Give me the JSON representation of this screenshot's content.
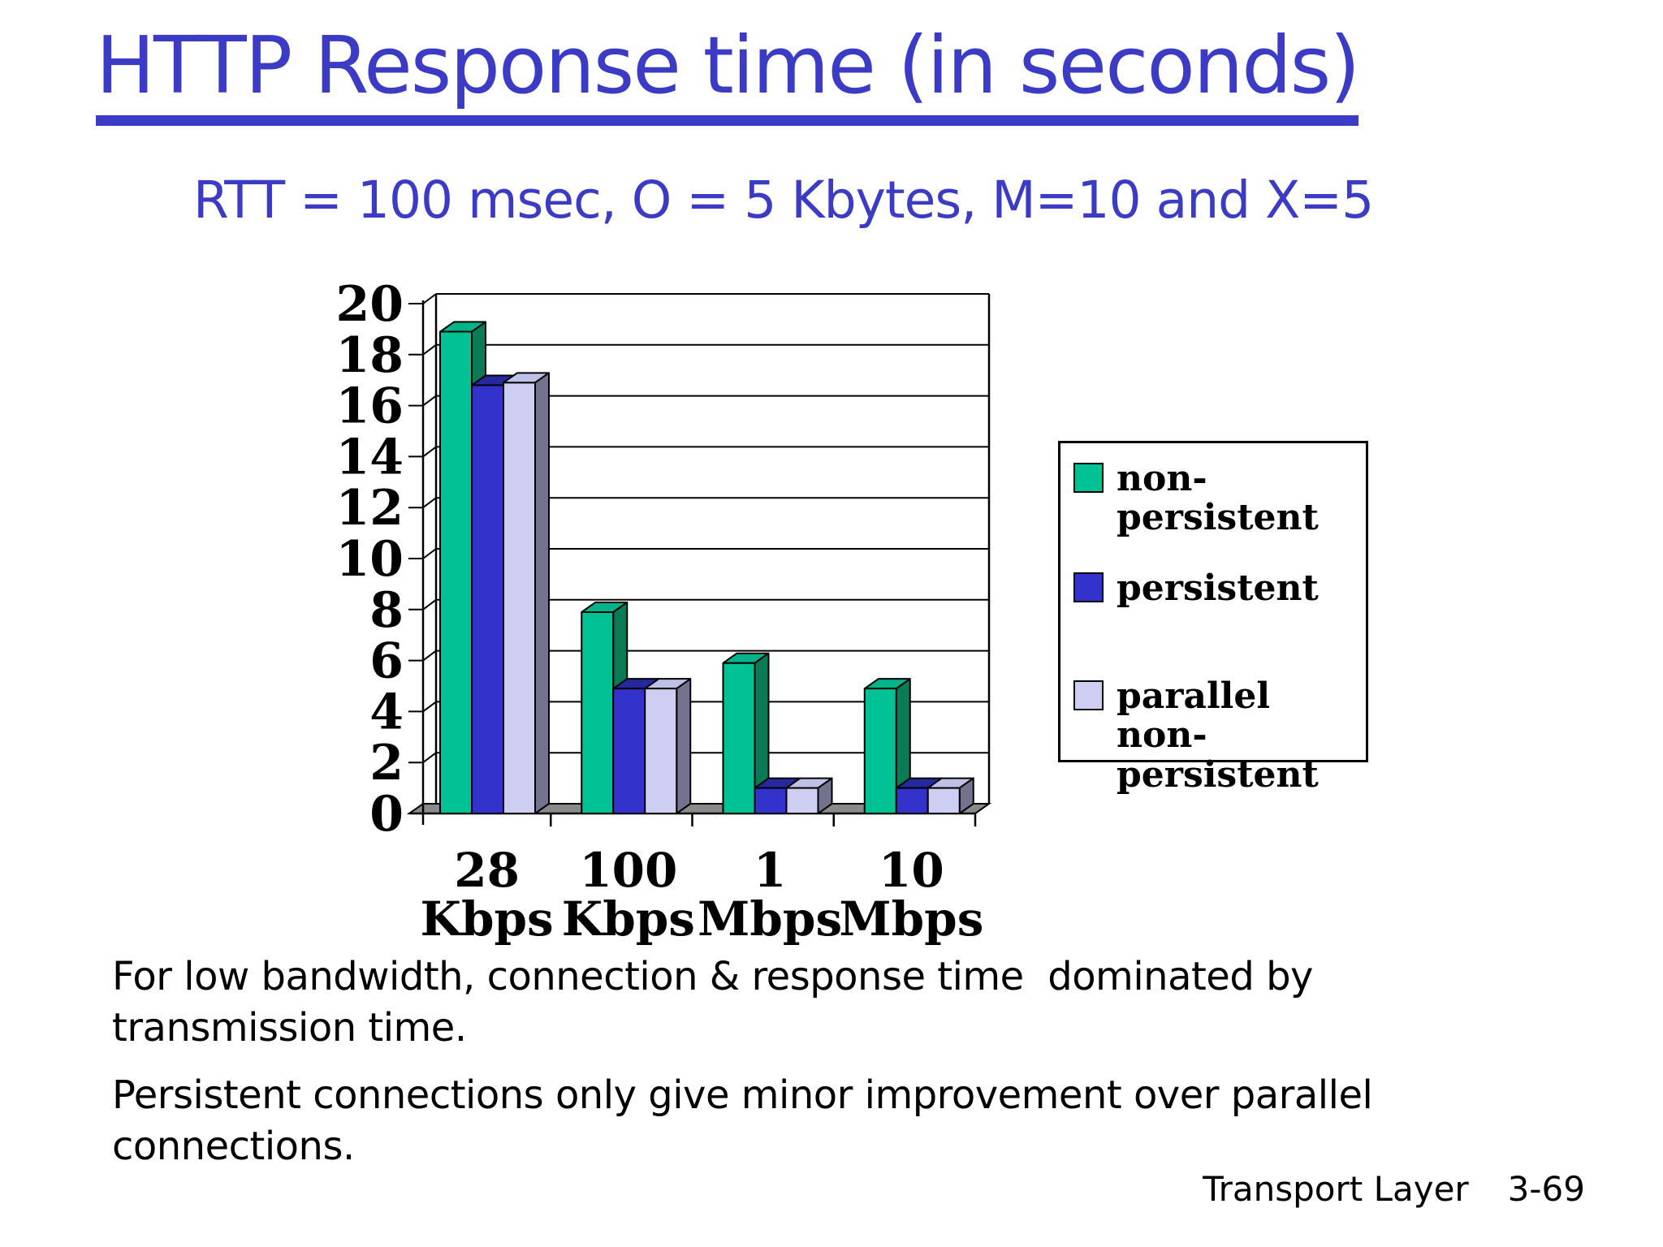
{
  "slide": {
    "title": "HTTP Response time (in seconds)",
    "subtitle": "RTT = 100 msec, O = 5 Kbytes, M=10 and X=5",
    "notes": [
      "For low bandwidth, connection & response time  dominated by transmission time.",
      "Persistent connections only give minor improvement over parallel connections."
    ],
    "footer_section": "Transport Layer",
    "footer_page": "3-69"
  },
  "chart_data": {
    "type": "bar",
    "title": "",
    "xlabel": "",
    "ylabel": "",
    "categories": [
      "28 Kbps",
      "100 Kbps",
      "1 Mbps",
      "10 Mbps"
    ],
    "category_lines": [
      [
        "28",
        "Kbps"
      ],
      [
        "100",
        "Kbps"
      ],
      [
        "1",
        "Mbps"
      ],
      [
        "10",
        "Mbps"
      ]
    ],
    "series": [
      {
        "name": "non-persistent",
        "values": [
          18.9,
          7.9,
          5.9,
          4.9
        ],
        "color": "#00C295",
        "color_top": "#03B389",
        "color_side": "#0B7B55"
      },
      {
        "name": "persistent",
        "values": [
          16.8,
          4.9,
          1.0,
          1.0
        ],
        "color": "#3333CC",
        "color_top": "#28289E",
        "color_side": "#222288"
      },
      {
        "name": "parallel non-persistent",
        "values": [
          16.9,
          4.9,
          1.0,
          1.0
        ],
        "color": "#CDCEF2",
        "color_top": "#BEC0E6",
        "color_side": "#73738F"
      }
    ],
    "ylim": [
      0,
      20
    ],
    "ytick_step": 2,
    "grid": true,
    "style": "3d-column",
    "legend_position": "right"
  },
  "colors": {
    "heading_blue": "#3B3BC6",
    "body_text": "#000000",
    "chart_floor": "#8A8A8A",
    "background": "#FFFFFF"
  }
}
